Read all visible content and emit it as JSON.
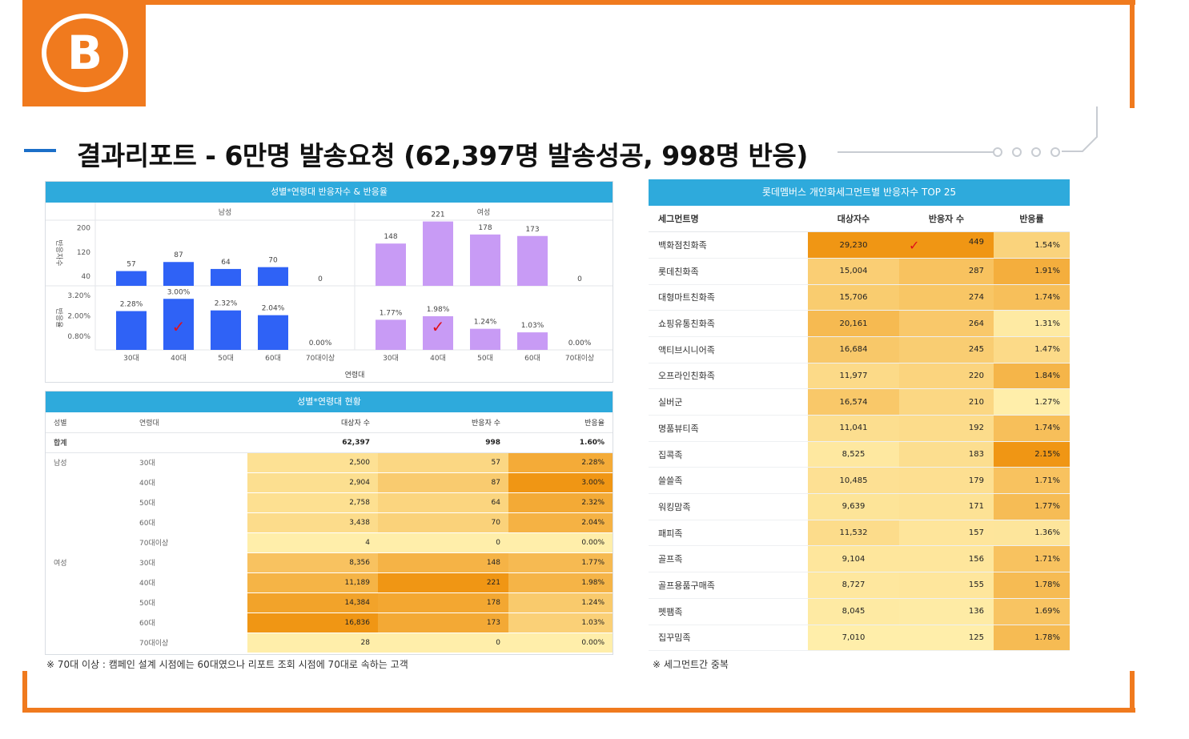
{
  "header": {
    "logo_letter": "B",
    "title": "결과리포트 - 6만명 발송요청 (62,397명 발송성공, 998명 반응)"
  },
  "colors": {
    "orange": "#f07a1e",
    "header_blue": "#2eaadc",
    "male_bar": "#2f62f6",
    "female_bar": "#c89bf5",
    "check_red": "#e0101a"
  },
  "chart_panel": {
    "title": "성별*연령대 반응자수 & 반응율",
    "male_label": "남성",
    "female_label": "여성",
    "xlabel": "연령대",
    "y1_label": "반응자수",
    "y2_label": "반응율"
  },
  "chart_data": {
    "type": "bar",
    "title": "성별*연령대 반응자수 & 반응율",
    "xlabel": "연령대",
    "groups": [
      "남성",
      "여성"
    ],
    "categories": [
      "30대",
      "40대",
      "50대",
      "60대",
      "70대이상"
    ],
    "responders": {
      "ylabel": "반응자수",
      "ylim": [
        40,
        220
      ],
      "yticks": [
        "200",
        "120",
        "40"
      ],
      "series": [
        {
          "name": "남성",
          "values": [
            57,
            87,
            64,
            70,
            0
          ],
          "labels": [
            "57",
            "87",
            "64",
            "70",
            "0"
          ]
        },
        {
          "name": "여성",
          "values": [
            148,
            221,
            178,
            173,
            0
          ],
          "labels": [
            "148",
            "221",
            "178",
            "173",
            "0"
          ]
        }
      ]
    },
    "rate": {
      "ylabel": "반응율",
      "ylim": [
        0,
        3.2
      ],
      "yticks": [
        "3.20%",
        "2.00%",
        "0.80%"
      ],
      "series": [
        {
          "name": "남성",
          "values": [
            2.28,
            3.0,
            2.32,
            2.04,
            0.0
          ],
          "labels": [
            "2.28%",
            "3.00%",
            "2.32%",
            "2.04%",
            "0.00%"
          ]
        },
        {
          "name": "여성",
          "values": [
            1.77,
            1.98,
            1.24,
            1.03,
            0.0
          ],
          "labels": [
            "1.77%",
            "1.98%",
            "1.24%",
            "1.03%",
            "0.00%"
          ]
        }
      ]
    },
    "check_mark": "✓"
  },
  "age_table": {
    "title": "성별*연령대 현황",
    "headers": [
      "성별",
      "연령대",
      "대상자 수",
      "반응자 수",
      "반응율"
    ],
    "total": {
      "label": "합계",
      "targets": "62,397",
      "responders": "998",
      "rate": "1.60%"
    },
    "rows": [
      {
        "gender": "남성",
        "age": "30대",
        "targets": "2,500",
        "responders": "57",
        "rate": "2.28%"
      },
      {
        "gender": "",
        "age": "40대",
        "targets": "2,904",
        "responders": "87",
        "rate": "3.00%"
      },
      {
        "gender": "",
        "age": "50대",
        "targets": "2,758",
        "responders": "64",
        "rate": "2.32%"
      },
      {
        "gender": "",
        "age": "60대",
        "targets": "3,438",
        "responders": "70",
        "rate": "2.04%"
      },
      {
        "gender": "",
        "age": "70대이상",
        "targets": "4",
        "responders": "0",
        "rate": "0.00%"
      },
      {
        "gender": "여성",
        "age": "30대",
        "targets": "8,356",
        "responders": "148",
        "rate": "1.77%"
      },
      {
        "gender": "",
        "age": "40대",
        "targets": "11,189",
        "responders": "221",
        "rate": "1.98%"
      },
      {
        "gender": "",
        "age": "50대",
        "targets": "14,384",
        "responders": "178",
        "rate": "1.24%"
      },
      {
        "gender": "",
        "age": "60대",
        "targets": "16,836",
        "responders": "173",
        "rate": "1.03%"
      },
      {
        "gender": "",
        "age": "70대이상",
        "targets": "28",
        "responders": "0",
        "rate": "0.00%"
      }
    ],
    "note": "※ 70대 이상 : 캠페인 설계 시점에는 60대였으나 리포트 조회 시점에 70대로 속하는 고객"
  },
  "segment_table": {
    "title": "롯데멤버스 개인화세그먼트별 반응자수 TOP 25",
    "headers": [
      "세그먼트명",
      "대상자수",
      "반응자 수",
      "반응률"
    ],
    "rows": [
      {
        "name": "백화점친화족",
        "targets": "29,230",
        "responders": "449",
        "rate": "1.54%"
      },
      {
        "name": "롯데친화족",
        "targets": "15,004",
        "responders": "287",
        "rate": "1.91%"
      },
      {
        "name": "대형마트친화족",
        "targets": "15,706",
        "responders": "274",
        "rate": "1.74%"
      },
      {
        "name": "쇼핑유통친화족",
        "targets": "20,161",
        "responders": "264",
        "rate": "1.31%"
      },
      {
        "name": "액티브시니어족",
        "targets": "16,684",
        "responders": "245",
        "rate": "1.47%"
      },
      {
        "name": "오프라인친화족",
        "targets": "11,977",
        "responders": "220",
        "rate": "1.84%"
      },
      {
        "name": "실버군",
        "targets": "16,574",
        "responders": "210",
        "rate": "1.27%"
      },
      {
        "name": "명품뷰티족",
        "targets": "11,041",
        "responders": "192",
        "rate": "1.74%"
      },
      {
        "name": "집콕족",
        "targets": "8,525",
        "responders": "183",
        "rate": "2.15%"
      },
      {
        "name": "쓸쓸족",
        "targets": "10,485",
        "responders": "179",
        "rate": "1.71%"
      },
      {
        "name": "워킹맘족",
        "targets": "9,639",
        "responders": "171",
        "rate": "1.77%"
      },
      {
        "name": "패피족",
        "targets": "11,532",
        "responders": "157",
        "rate": "1.36%"
      },
      {
        "name": "골프족",
        "targets": "9,104",
        "responders": "156",
        "rate": "1.71%"
      },
      {
        "name": "골프용품구매족",
        "targets": "8,727",
        "responders": "155",
        "rate": "1.78%"
      },
      {
        "name": "펫팸족",
        "targets": "8,045",
        "responders": "136",
        "rate": "1.69%"
      },
      {
        "name": "집꾸밈족",
        "targets": "7,010",
        "responders": "125",
        "rate": "1.78%"
      }
    ],
    "note": "※ 세그먼트간 중복"
  }
}
